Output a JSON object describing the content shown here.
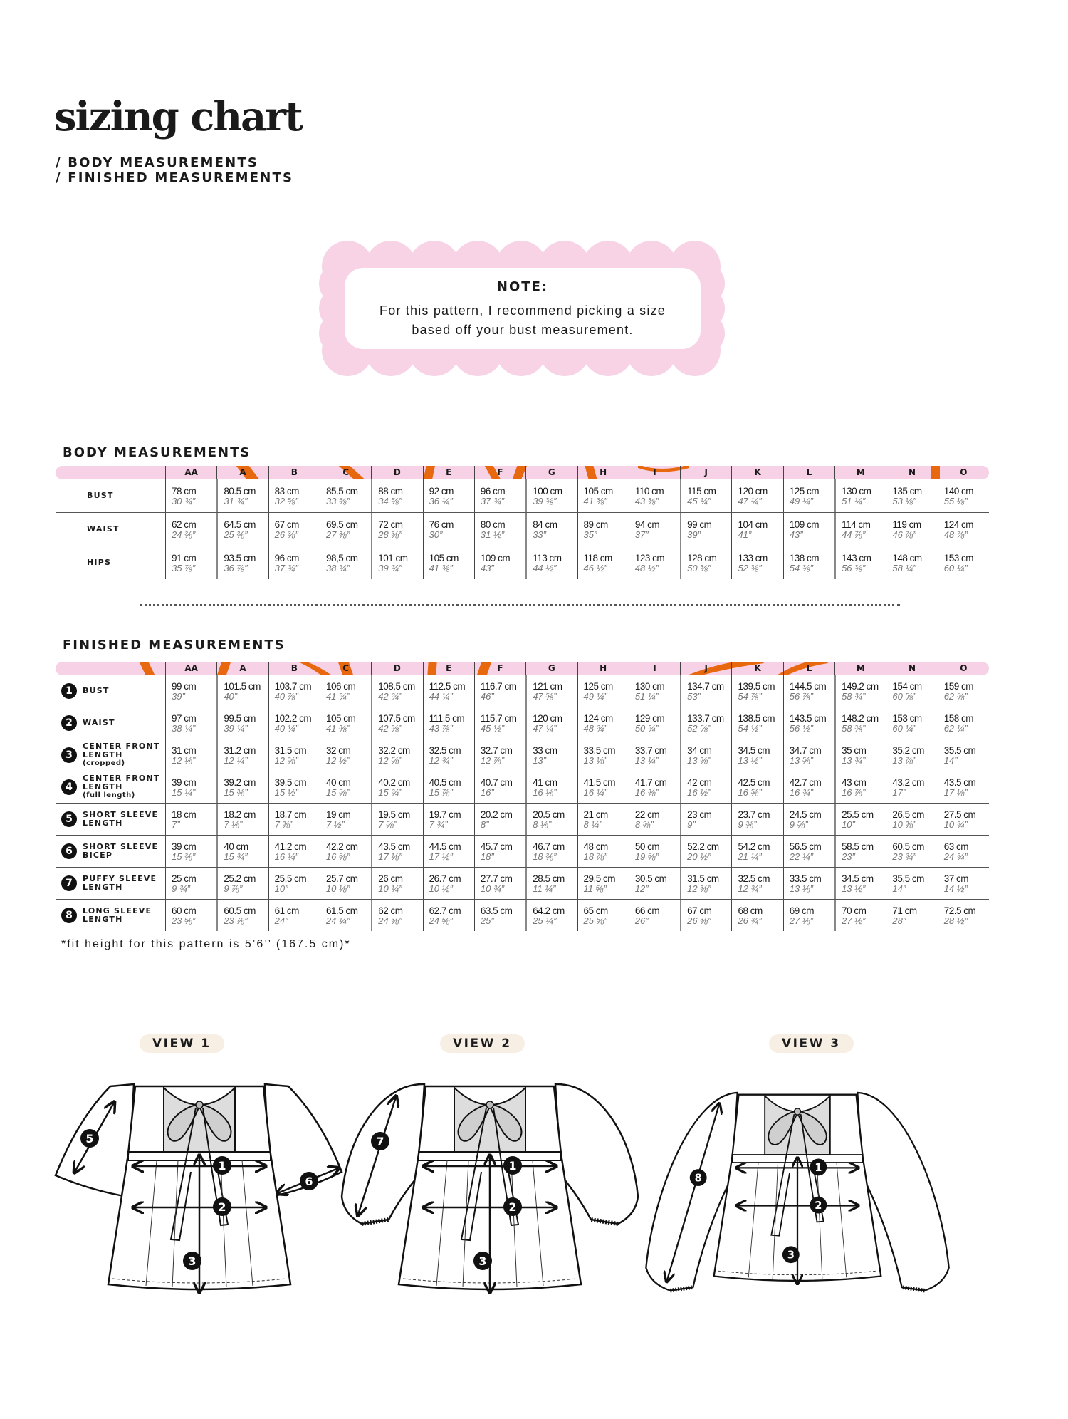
{
  "header": {
    "title": "sizing chart",
    "subtitles": [
      "/ BODY MEASUREMENTS",
      "/ FINISHED MEASUREMENTS"
    ]
  },
  "note": {
    "title": "NOTE:",
    "lines": [
      "For this pattern, I recommend picking a size",
      "based off your bust measurement."
    ]
  },
  "colors": {
    "pink": "#f7d2e6",
    "orange": "#e8680f",
    "note_pink": "#f8d3e6",
    "pill": "#f7efe4"
  },
  "sizes": [
    "AA",
    "A",
    "B",
    "C",
    "D",
    "E",
    "F",
    "G",
    "H",
    "I",
    "J",
    "K",
    "L",
    "M",
    "N",
    "O"
  ],
  "body": {
    "heading": "BODY MEASUREMENTS",
    "rows": [
      {
        "label": "BUST",
        "cm": [
          "78 cm",
          "80.5 cm",
          "83 cm",
          "85.5 cm",
          "88 cm",
          "92 cm",
          "96 cm",
          "100 cm",
          "105 cm",
          "110 cm",
          "115 cm",
          "120 cm",
          "125 cm",
          "130 cm",
          "135 cm",
          "140 cm"
        ],
        "in": [
          "30 ¾”",
          "31 ¾”",
          "32 ⅝”",
          "33 ⅝”",
          "34 ⅝”",
          "36 ¼”",
          "37 ¾”",
          "39 ⅜”",
          "41 ⅜”",
          "43 ⅜”",
          "45 ¼”",
          "47 ¼”",
          "49 ¼”",
          "51 ¼”",
          "53 ⅛”",
          "55 ⅛”"
        ]
      },
      {
        "label": "WAIST",
        "cm": [
          "62 cm",
          "64.5 cm",
          "67 cm",
          "69.5 cm",
          "72 cm",
          "76 cm",
          "80 cm",
          "84 cm",
          "89 cm",
          "94 cm",
          "99 cm",
          "104 cm",
          "109 cm",
          "114 cm",
          "119 cm",
          "124 cm"
        ],
        "in": [
          "24 ⅜”",
          "25 ⅜”",
          "26 ⅜”",
          "27 ⅜”",
          "28 ⅜”",
          "30”",
          "31 ½”",
          "33”",
          "35”",
          "37”",
          "39”",
          "41”",
          "43”",
          "44 ⅞”",
          "46 ⅞”",
          "48 ⅞”"
        ]
      },
      {
        "label": "HIPS",
        "cm": [
          "91 cm",
          "93.5 cm",
          "96 cm",
          "98,5 cm",
          "101 cm",
          "105 cm",
          "109 cm",
          "113 cm",
          "118 cm",
          "123 cm",
          "128 cm",
          "133 cm",
          "138 cm",
          "143 cm",
          "148 cm",
          "153 cm"
        ],
        "in": [
          "35 ⅞”",
          "36 ⅞”",
          "37 ¾”",
          "38 ¾”",
          "39 ¾”",
          "41 ⅜”",
          "43”",
          "44 ½”",
          "46 ½”",
          "48 ½”",
          "50 ⅜”",
          "52 ⅜”",
          "54 ⅜”",
          "56 ⅜”",
          "58 ¼”",
          "60 ¼”"
        ]
      }
    ]
  },
  "finished": {
    "heading": "FINISHED MEASUREMENTS",
    "rows": [
      {
        "num": "1",
        "label": [
          "BUST"
        ],
        "cm": [
          "99 cm",
          "101.5 cm",
          "103.7 cm",
          "106 cm",
          "108.5 cm",
          "112.5 cm",
          "116.7 cm",
          "121 cm",
          "125 cm",
          "130 cm",
          "134.7 cm",
          "139.5 cm",
          "144.5 cm",
          "149.2 cm",
          "154 cm",
          "159 cm"
        ],
        "in": [
          "39”",
          "40”",
          "40 ⅞”",
          "41 ¾”",
          "42 ¾”",
          "44 ¼”",
          "46”",
          "47 ⅝”",
          "49 ¼”",
          "51 ¼”",
          "53”",
          "54 ⅞”",
          "56 ⅞”",
          "58 ¾”",
          "60 ⅝”",
          "62 ⅝”"
        ]
      },
      {
        "num": "2",
        "label": [
          "WAIST"
        ],
        "cm": [
          "97 cm",
          "99.5 cm",
          "102.2 cm",
          "105 cm",
          "107.5 cm",
          "111.5 cm",
          "115.7 cm",
          "120 cm",
          "124 cm",
          "129 cm",
          "133.7 cm",
          "138.5 cm",
          "143.5 cm",
          "148.2 cm",
          "153 cm",
          "158 cm"
        ],
        "in": [
          "38 ¼”",
          "39 ¼”",
          "40 ¼”",
          "41 ⅜”",
          "42 ⅜”",
          "43 ⅞”",
          "45 ½”",
          "47 ¼”",
          "48 ¾”",
          "50 ¾”",
          "52 ⅝”",
          "54 ½”",
          "56 ½”",
          "58 ⅜”",
          "60 ¼”",
          "62 ¼”"
        ]
      },
      {
        "num": "3",
        "label": [
          "CENTER FRONT",
          "LENGTH"
        ],
        "sub": "(cropped)",
        "cm": [
          "31 cm",
          "31.2 cm",
          "31.5 cm",
          "32 cm",
          "32.2 cm",
          "32.5 cm",
          "32.7 cm",
          "33 cm",
          "33.5 cm",
          "33.7 cm",
          "34 cm",
          "34.5 cm",
          "34.7 cm",
          "35 cm",
          "35.2 cm",
          "35.5 cm"
        ],
        "in": [
          "12 ⅛”",
          "12 ¼”",
          "12 ⅜”",
          "12 ½”",
          "12 ⅝”",
          "12 ¾”",
          "12 ⅞”",
          "13”",
          "13 ⅛”",
          "13 ¼”",
          "13 ⅜”",
          "13 ½”",
          "13 ⅝”",
          "13 ¾”",
          "13 ⅞”",
          "14”"
        ]
      },
      {
        "num": "4",
        "label": [
          "CENTER FRONT",
          "LENGTH"
        ],
        "sub": "(full length)",
        "cm": [
          "39 cm",
          "39.2 cm",
          "39.5 cm",
          "40 cm",
          "40.2 cm",
          "40.5 cm",
          "40.7 cm",
          "41 cm",
          "41.5 cm",
          "41.7 cm",
          "42 cm",
          "42.5 cm",
          "42.7 cm",
          "43 cm",
          "43.2 cm",
          "43.5 cm"
        ],
        "in": [
          "15 ¼”",
          "15 ⅜”",
          "15 ½”",
          "15 ⅝”",
          "15 ¾”",
          "15 ⅞”",
          "16”",
          "16 ⅛”",
          "16 ¼”",
          "16 ⅜”",
          "16 ½”",
          "16 ⅝”",
          "16 ¾”",
          "16 ⅞”",
          "17”",
          "17 ⅛”"
        ]
      },
      {
        "num": "5",
        "label": [
          "SHORT SLEEVE",
          "LENGTH"
        ],
        "cm": [
          "18 cm",
          "18.2 cm",
          "18.7 cm",
          "19 cm",
          "19.5 cm",
          "19.7 cm",
          "20.2 cm",
          "20.5 cm",
          "21 cm",
          "22 cm",
          "23 cm",
          "23.7 cm",
          "24.5 cm",
          "25.5 cm",
          "26.5 cm",
          "27.5 cm"
        ],
        "in": [
          "7”",
          "7 ⅛”",
          "7 ⅜”",
          "7 ½”",
          "7 ⅝”",
          "7 ¾”",
          "8”",
          "8 ⅛”",
          "8 ¼”",
          "8 ⅝”",
          "9”",
          "9 ⅜”",
          "9 ⅝”",
          "10”",
          "10 ⅜”",
          "10 ¾”"
        ]
      },
      {
        "num": "6",
        "label": [
          "SHORT SLEEVE",
          "BICEP"
        ],
        "cm": [
          "39 cm",
          "40 cm",
          "41.2 cm",
          "42.2 cm",
          "43.5 cm",
          "44.5 cm",
          "45.7 cm",
          "46.7 cm",
          "48 cm",
          "50 cm",
          "52.2 cm",
          "54.2 cm",
          "56.5 cm",
          "58.5 cm",
          "60.5 cm",
          "63 cm"
        ],
        "in": [
          "15 ⅜”",
          "15 ¾”",
          "16 ¼”",
          "16 ⅝”",
          "17 ⅛”",
          "17 ½”",
          "18”",
          "18 ⅜”",
          "18 ⅞”",
          "19 ⅝”",
          "20 ½”",
          "21 ¼”",
          "22 ¼”",
          "23”",
          "23 ¾”",
          "24 ¾”"
        ]
      },
      {
        "num": "7",
        "label": [
          "PUFFY SLEEVE",
          "LENGTH"
        ],
        "cm": [
          "25 cm",
          "25.2 cm",
          "25.5 cm",
          "25.7 cm",
          "26 cm",
          "26.7 cm",
          "27.7 cm",
          "28.5 cm",
          "29.5 cm",
          "30.5 cm",
          "31.5 cm",
          "32.5 cm",
          "33.5 cm",
          "34.5 cm",
          "35.5 cm",
          "37 cm"
        ],
        "in": [
          "9 ¾”",
          "9 ⅞”",
          "10”",
          "10 ⅛”",
          "10 ¼”",
          "10 ½”",
          "10 ¾”",
          "11 ¼”",
          "11 ⅝”",
          "12”",
          "12 ⅜”",
          "12 ¾”",
          "13 ⅛”",
          "13 ½”",
          "14”",
          "14 ½”"
        ]
      },
      {
        "num": "8",
        "label": [
          "LONG SLEEVE",
          "LENGTH"
        ],
        "cm": [
          "60 cm",
          "60.5 cm",
          "61 cm",
          "61.5 cm",
          "62 cm",
          "62.7 cm",
          "63.5 cm",
          "64.2 cm",
          "65 cm",
          "66 cm",
          "67 cm",
          "68 cm",
          "69 cm",
          "70 cm",
          "71 cm",
          "72.5 cm"
        ],
        "in": [
          "23 ⅝”",
          "23 ⅞”",
          "24”",
          "24 ¼”",
          "24 ⅜”",
          "24 ⅝”",
          "25”",
          "25 ¼”",
          "25 ⅝”",
          "26”",
          "26 ⅜”",
          "26 ¾”",
          "27 ⅛”",
          "27 ½”",
          "28”",
          "28 ½”"
        ]
      }
    ]
  },
  "footnote": "*fit height for this pattern is 5’6’’ (167.5 cm)*",
  "views": [
    {
      "label": "VIEW 1",
      "markers": [
        "1",
        "2",
        "3",
        "5",
        "6"
      ]
    },
    {
      "label": "VIEW 2",
      "markers": [
        "1",
        "2",
        "3",
        "7"
      ]
    },
    {
      "label": "VIEW 3",
      "markers": [
        "1",
        "2",
        "3",
        "8"
      ]
    }
  ]
}
